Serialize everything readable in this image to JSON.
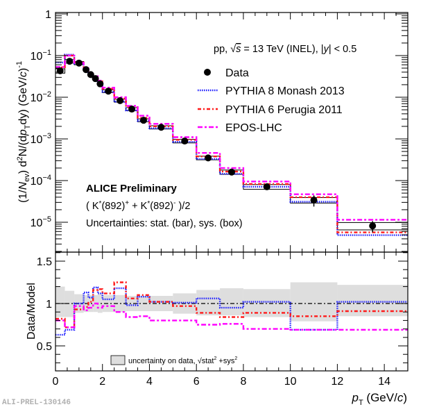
{
  "chart_data": [
    {
      "type": "line",
      "panel": "spectrum",
      "yscale": "log",
      "xlim": [
        0,
        15
      ],
      "ylim": [
        2e-06,
        1
      ],
      "ylabel": "(1/N_ev) d²N/(dp_T dy) (GeV/c)⁻¹",
      "ylabel_parts": {
        "a": "(1/",
        "N": "N",
        "ev": "ev",
        "b": ") d",
        "sq": "2",
        "c": "N/(d",
        "p": "p",
        "T": "T",
        "d": "dy) (GeV/",
        "cc": "c",
        "e": ")",
        "m1": "-1"
      },
      "yticks": [
        {
          "value": 1,
          "mant": "1",
          "exp": ""
        },
        {
          "value": 0.1,
          "mant": "10",
          "exp": "−1"
        },
        {
          "value": 0.01,
          "mant": "10",
          "exp": "−2"
        },
        {
          "value": 0.001,
          "mant": "10",
          "exp": "−3"
        },
        {
          "value": 0.0001,
          "mant": "10",
          "exp": "−4"
        },
        {
          "value": 1e-05,
          "mant": "10",
          "exp": "−5"
        }
      ],
      "annotations": {
        "collision": "pp, √s = 13 TeV (INEL), |y| < 0.5",
        "collision_parts": {
          "a": "pp, ",
          "s": "s",
          "b": " = 13 TeV (INEL), |",
          "y": "y",
          "c": "| < 0.5"
        },
        "alice": "ALICE Preliminary",
        "particle": "( K*(892)⁺ + K*(892)⁻ )/2",
        "particle_parts": {
          "a": "( K",
          "star1": "*",
          "b": "(892)",
          "plus": "+",
          "c": " + K",
          "star2": "*",
          "d": "(892)",
          "minus": "-",
          "e": " )/2"
        },
        "uncert": "Uncertainties: stat. (bar), sys. (box)"
      },
      "bins": [
        0,
        0.4,
        0.8,
        1.2,
        1.4,
        1.6,
        1.8,
        2.0,
        2.5,
        3.0,
        3.5,
        4.0,
        5.0,
        6.0,
        7.0,
        8.0,
        10.0,
        12.0,
        15.0
      ],
      "legend": [
        {
          "name": "Data",
          "style": "marker",
          "color": "#000000"
        },
        {
          "name": "PYTHIA 8 Monash 2013",
          "style": "dotted",
          "color": "#1a1aff"
        },
        {
          "name": "PYTHIA 6 Perugia 2011",
          "style": "dashdot",
          "color": "#ff1a1a"
        },
        {
          "name": "EPOS-LHC",
          "style": "dashdot-long",
          "color": "#ff00ff"
        }
      ],
      "series": [
        {
          "name": "Data",
          "x": [
            0.2,
            0.6,
            1.0,
            1.3,
            1.5,
            1.7,
            1.9,
            2.25,
            2.75,
            3.25,
            3.75,
            4.5,
            5.5,
            6.5,
            7.5,
            9.0,
            11.0,
            13.5
          ],
          "values": [
            0.043,
            0.073,
            0.066,
            0.046,
            0.035,
            0.028,
            0.021,
            0.014,
            0.0083,
            0.0052,
            0.0028,
            0.0019,
            0.00089,
            0.00035,
            0.00016,
            7.1e-05,
            3.4e-05,
            8.2e-06
          ]
        },
        {
          "name": "PYTHIA 8 Monash 2013",
          "values": [
            0.068,
            0.105,
            0.064,
            0.044,
            0.032,
            0.026,
            0.02,
            0.0135,
            0.0078,
            0.0048,
            0.0027,
            0.0018,
            0.00085,
            0.00033,
            0.000145,
            7.1e-05,
            3.1e-05,
            4.9e-06
          ]
        },
        {
          "name": "PYTHIA 6 Perugia 2011",
          "values": [
            0.052,
            0.1,
            0.068,
            0.048,
            0.036,
            0.03,
            0.024,
            0.016,
            0.0093,
            0.0058,
            0.0032,
            0.002,
            0.00095,
            0.00038,
            0.000165,
            8.3e-05,
            4e-05,
            5.7e-06
          ]
        },
        {
          "name": "EPOS-LHC",
          "values": [
            0.053,
            0.1,
            0.067,
            0.05,
            0.038,
            0.032,
            0.025,
            0.017,
            0.01,
            0.0062,
            0.0036,
            0.0023,
            0.0011,
            0.00046,
            0.0002,
            9.5e-05,
            4.7e-05,
            1.15e-05
          ]
        }
      ],
      "sys_rel": [
        0.12,
        0.1,
        0.09,
        0.08,
        0.08,
        0.08,
        0.08,
        0.08,
        0.08,
        0.08,
        0.08,
        0.09,
        0.1,
        0.1,
        0.12,
        0.13,
        0.15,
        0.2
      ],
      "stat_rel": [
        0.02,
        0.02,
        0.02,
        0.02,
        0.02,
        0.02,
        0.02,
        0.02,
        0.02,
        0.03,
        0.03,
        0.04,
        0.05,
        0.06,
        0.08,
        0.1,
        0.3,
        0.3
      ]
    },
    {
      "type": "line",
      "panel": "ratio",
      "xlim": [
        0,
        15
      ],
      "ylim": [
        0.2,
        1.62
      ],
      "xlabel": "p_T (GeV/c)",
      "xlabel_parts": {
        "p": "p",
        "T": "T",
        "rest": " (GeV/",
        "c": "c",
        "end": ")"
      },
      "ylabel": "Data/Model",
      "xticks": [
        {
          "value": 0,
          "label": "0"
        },
        {
          "value": 2,
          "label": "2"
        },
        {
          "value": 4,
          "label": "4"
        },
        {
          "value": 6,
          "label": "6"
        },
        {
          "value": 8,
          "label": "8"
        },
        {
          "value": 10,
          "label": "10"
        },
        {
          "value": 12,
          "label": "12"
        },
        {
          "value": 14,
          "label": "14"
        }
      ],
      "yticks": [
        {
          "value": 0.5,
          "label": "0.5"
        },
        {
          "value": 1,
          "label": "1"
        },
        {
          "value": 1.5,
          "label": "1.5"
        }
      ],
      "reference_line": 1,
      "bins": [
        0,
        0.4,
        0.8,
        1.2,
        1.4,
        1.6,
        1.8,
        2.0,
        2.5,
        3.0,
        3.5,
        4.0,
        5.0,
        6.0,
        7.0,
        8.0,
        10.0,
        12.0,
        15.0
      ],
      "uncertainty_band": {
        "label": "uncertainty on data,",
        "label_parts": {
          "a": "uncertainty on data, ",
          "sqrt": "√",
          "b": "stat",
          "s1": "2",
          "c": " +sys",
          "s2": "2"
        },
        "color": "#dedede",
        "lower": [
          0.84,
          0.84,
          0.89,
          0.9,
          0.9,
          0.9,
          0.89,
          0.9,
          0.9,
          0.91,
          0.91,
          0.91,
          0.88,
          0.86,
          0.86,
          0.84,
          0.79,
          0.85
        ],
        "upper": [
          1.2,
          1.15,
          1.11,
          1.1,
          1.1,
          1.1,
          1.11,
          1.1,
          1.1,
          1.09,
          1.09,
          1.09,
          1.12,
          1.16,
          1.18,
          1.17,
          1.25,
          1.22
        ]
      },
      "series": [
        {
          "name": "PYTHIA 8 Monash 2013",
          "color": "#1a1aff",
          "values": [
            0.63,
            0.69,
            1.0,
            1.13,
            1.07,
            1.19,
            1.12,
            1.05,
            1.18,
            0.98,
            1.08,
            1.02,
            1.01,
            1.06,
            0.95,
            1.02,
            0.69,
            1.02
          ]
        },
        {
          "name": "PYTHIA 6 Perugia 2011",
          "color": "#ff1a1a",
          "values": [
            0.82,
            0.72,
            0.93,
            0.96,
            1.02,
            1.16,
            1.17,
            1.12,
            1.25,
            1.06,
            1.1,
            1.02,
            0.97,
            0.89,
            0.84,
            0.89,
            0.85,
            0.91
          ]
        },
        {
          "name": "EPOS-LHC",
          "color": "#ff00ff",
          "values": [
            0.8,
            0.72,
            0.97,
            0.92,
            0.95,
            1.0,
            0.95,
            0.97,
            0.9,
            0.84,
            0.85,
            0.8,
            0.8,
            0.75,
            0.76,
            0.7,
            0.69,
            0.69
          ]
        }
      ]
    }
  ],
  "footer": "ALI-PREL-130146"
}
